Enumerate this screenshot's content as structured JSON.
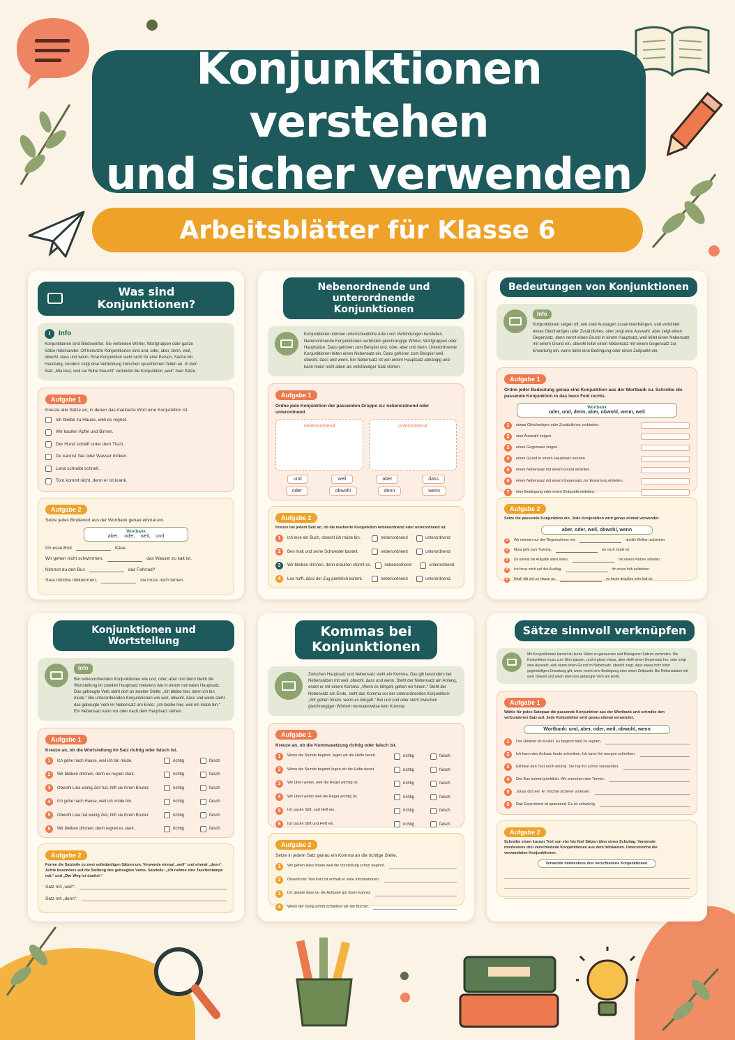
{
  "header": {
    "title_line1": "Konjunktionen verstehen",
    "title_line2": "und sicher verwenden",
    "subtitle": "Arbeitsblätter für Klasse 6"
  },
  "colors": {
    "teal": "#1e5a5c",
    "orange": "#ec7a4e",
    "yellow": "#eea22a",
    "green": "#8ea36f",
    "background": "#fbf3e6"
  },
  "card1": {
    "title": "Was sind Konjunktionen?",
    "info_label": "Info",
    "info_text": "Konjunktionen sind Bindewörter. Sie verbinden Wörter, Wortgruppen oder ganze Sätze miteinander. Oft benutzte Konjunktionen sind und, oder, aber, denn, weil, obwohl, dass und wenn. Eine Konjunktion steht nicht für eine Person, Sache bin Handlung, sondern zeigt eine Verbindung zwischen sprachlichen Teilen an. In dem Satz „Mia liest, weil sie Ruhe braucht“ verbindet die Konjunktion „weil“ zwei Sätze.",
    "task1_label": "Aufgabe 1",
    "task1_intro": "Kreuze alle Sätze an, in denen das markierte Wort eine Konjunktion ist.",
    "task1_items": [
      "Ich bleibe zu Hause, weil es regnet.",
      "Wir kaufen Äpfel und Birnen.",
      "Der Hund schläft unter dem Tisch.",
      "Du kannst Tee oder Wasser trinken.",
      "Lena schreibt schnell.",
      "Tom kommt nicht, denn er ist krank."
    ],
    "task2_label": "Aufgabe 2",
    "task2_intro": "Setze jedes Bindewort aus der Wortbank genau einmal ein.",
    "wordbank_title": "Wortbank",
    "wordbank": [
      "aber,",
      "oder,",
      "weil,",
      "und"
    ],
    "task2_items": [
      [
        "Ich esse Brot",
        "Käse."
      ],
      [
        "Wir gehen nicht schwimmen,",
        "das Wasser zu kalt ist."
      ],
      [
        "Nimmst du den Bus",
        "das Fahrrad?"
      ],
      [
        "Sara möchte mitkommen,",
        "sie muss noch lernen."
      ]
    ]
  },
  "card2": {
    "title_line1": "Nebenordnende und",
    "title_line2": "unterordnende Konjunktionen",
    "info_text": "Konjunktionen können unterschiedliche Arten von Verbindungen herstellen. Nebenordnende Konjunktionen verbinden gleichrangige Wörter, Wortgruppen oder Hauptsätze. Dazu gehören zum Beispiel und, oder, aber und denn. Unterordnende Konjunktionen leiten einen Nebensatz ein. Dazu gehören zum Beispiel weil, obwohl, dass und wenn. Ein Nebensatz ist von einem Hauptsatz abhängig und kann meist nicht allein als vollständiger Satz stehen.",
    "task1_label": "Aufgabe 1",
    "task1_intro": "Ordne jede Konjunktion der passenden Gruppe zu: nebenordnend oder unterordnend.",
    "col1": "nebenordnend",
    "col2": "unterordnend",
    "chips_row1": [
      "und",
      "weil",
      "aber",
      "dass"
    ],
    "chips_row2": [
      "oder",
      "obwohl",
      "denn",
      "wenn"
    ],
    "task2_label": "Aufgabe 2",
    "task2_intro": "Kreuze bei jedem Satz an, ob die markierte Konjunktion nebenordnend oder unterordnend ist.",
    "opt1": "nebenordnend",
    "opt2": "unterordnend",
    "task2_items": [
      "Ich lese ein Buch, obwohl ich müde bin.",
      "Ben malt und seine Schwester bastelt.",
      "Wir bleiben drinnen, denn draußen stürmt es.",
      "Lea hofft, dass der Zug pünktlich kommt."
    ],
    "task2_nums": [
      "1",
      "2",
      "3",
      "4"
    ]
  },
  "card3": {
    "title": "Bedeutungen von Konjunktionen",
    "info_label": "Info",
    "info_text": "Konjunktionen zeigen oft, wie zwei Aussagen zusammenhängen. und verbindet etwas Gleichartiges oder Zusätzliches. oder zeigt eine Auswahl. aber zeigt einen Gegensatz. denn nennt einen Grund in einem Hauptsatz, weil leitet einen Nebensatz mit einem Grund ein. obwohl leitet einen Nebensatz mit einem Gegensatz zur Erwartung ein. wenn leitet eine Bedingung oder einen Zeitpunkt ein.",
    "task1_label": "Aufgabe 1",
    "task1_intro": "Ordne jeder Bedeutung genau eine Konjunktion aus der Wortbank zu. Schreibe die passende Konjunktion in das leere Feld rechts.",
    "wordbank_title": "Wortbank",
    "wordbank": "oder,   und,   denn,   aber,   obwohl,   wenn,   weil",
    "task1_items": [
      "etwas Gleichartiges oder Zusätzliches verbinden.",
      "eine Auswahl zeigen.",
      "einen Gegensatz zeigen.",
      "einen Grund in einem Hauptsatz nennen.",
      "einen Nebensatz mit einem Grund einleiten.",
      "einen Nebensatz mit einem Gegensatz zur Erwartung einleiten.",
      "eine Bedingung oder einen Zeitpunkt einleiten."
    ],
    "task1_nums": [
      "1",
      "2",
      "3",
      "4",
      "5",
      "6",
      "7"
    ],
    "task2_label": "Aufgabe 2",
    "task2_intro": "Setze die passende Konjunktion ein. Jede Konjunktion wird genau einmal verwendet.",
    "wordbank2": "aber,   oder,   weil,   obwohl,   wenn",
    "task2_items": [
      [
        "Wir nehmen nur den Regenschirme mit,",
        "dunkle Wolken aufziehen."
      ],
      [
        "Mara geht zum Training,",
        "sie noch müde ist."
      ],
      [
        "Du kannst die Aufgabe allein lösen,",
        "mit einem Partner arbeiten."
      ],
      [
        "Ich freue mich auf den Ausflug,",
        "ich muss früh aufstehen."
      ],
      [
        "Noah übt viel zu Hause an,",
        "es heute draußen sehr kalt ist."
      ]
    ],
    "task2_nums": [
      "1",
      "2",
      "3",
      "4",
      "5"
    ]
  },
  "card4": {
    "title": "Konjunktionen und Wortstellung",
    "info_label": "Info",
    "info_text": "Bei nebenordnenden Konjunktionen wie und, oder, aber und denn bleibt die Wortstellung im zweiten Hauptsatz meistens wie in einem normalen Hauptsatz. Das gebeugte Verb steht dort an zweiter Stelle: „Ich bleibe hier, denn ich bin müde.“ Bei unterordnenden Konjunktionen wie weil, obwohl, dass und wenn steht das gebeugte Verb im Nebensatz am Ende: „Ich bleibe hier, weil ich müde bin.“ Ein Nebensatz kann vor oder nach dem Hauptsatz stehen.",
    "task1_label": "Aufgabe 1",
    "task1_intro": "Kreuze an, ob die Wortstellung im Satz richtig oder falsch ist.",
    "opt1": "richtig",
    "opt2": "falsch",
    "task1_items": [
      "Ich gehe nach Hause, weil ich bin müde.",
      "Wir bleiben drinnen, denn es regnet stark.",
      "Obwohl Lina wenig Zeit hat, hilft sie ihrem Bruder.",
      "Ich gehe nach Hause, weil ich müde bin.",
      "Obwohl Lina hat wenig Zeit, hilft sie ihrem Bruder.",
      "Wir bleiben drinnen, denn regnet es stark."
    ],
    "task1_nums": [
      "1",
      "2",
      "3",
      "4",
      "5",
      "6"
    ],
    "task2_label": "Aufgabe 2",
    "task2_intro": "Forme die Satzteile zu zwei vollständigen Sätzen um. Verwende einmal „weil“ und einmal „denn“. Achte besonders auf die Stellung des gebeugten Verbs. Satzteile: „Ich nehme eine Taschenlampe mit.“ und „Der Weg ist dunkel.“",
    "task2_items": [
      "Satz mit „weil“:",
      "Satz mit „denn“:"
    ]
  },
  "card5": {
    "title_line1": "Kommas bei",
    "title_line2": "Konjunktionen",
    "info_text": "Zwischen Hauptsatz und Nebensatz steht ein Komma. Das gilt besonders bei Nebensätzen mit weil, obwohl, dass und wenn. Steht der Nebensatz am Anfang, endet er mit einem Komma: „Wenn es klingelt, gehen wir hinein.“ Steht der Nebensatz am Ende, steht das Komma vor der unterordnenden Konjunktion: „Wir gehen hinein, wenn es klingelt.“ Bei und und oder steht zwischen gleichrangigen Wörtern normalerweise kein Komma.",
    "task1_label": "Aufgabe 1",
    "task1_intro": "Kreuze an, ob die Kommasetzung richtig oder falsch ist.",
    "opt1": "richtig",
    "opt2": "falsch",
    "task1_items": [
      "Wenn die Stunde beginnt, legen wir die Hefte bereit.",
      "Wenn die Stunde beginnt legen wir die Hefte bereit.",
      "Wir üben weiter, weil die Regel wichtig ist.",
      "Wir üben weiter weil die Regel wichtig ist.",
      "Ich packe Stift, und Heft ein.",
      "Ich packe Stift und Heft ein."
    ],
    "task1_nums": [
      "1",
      "2",
      "3",
      "4",
      "5",
      "6"
    ],
    "task2_label": "Aufgabe 2",
    "task2_intro": "Setze in jedem Satz genau ein Komma an die richtige Stelle.",
    "task2_items": [
      "Wir gehen leise hinein weil die Vorstellung schon beginnt.",
      "Obwohl der Text kurz ist enthält er viele Informationen.",
      "Ich glaube dass du die Aufgabe gut lösen kannst.",
      "Wenn der Gong ertönt schließen wir die Bücher."
    ],
    "task2_nums": [
      "1",
      "2",
      "3",
      "4"
    ]
  },
  "card6": {
    "title": "Sätze sinnvoll verknüpfen",
    "info_text": "Mit Konjunktionen kannst du kurze Sätze zu genaueren und flüssigeren Sätzen verbinden. Die Konjunktion muss zum Sinn passen. und ergänzt etwas, aber stellt einen Gegensatz her, oder zeigt eine Auswahl, weil nennt einen Grund im Nebensatz, obwohl zeigt, dass etwas trotz einer gegenteiligen Erwartung gilt, wenn nennt eine Bedingung oder einen Zeitpunkt. Bei Nebensätzen mit weil, obwohl und wenn steht das gebeugte Verb am Ende.",
    "task1_label": "Aufgabe 1",
    "task1_intro": "Wähle für jedes Satzpaar die passende Konjunktion aus der Wortbank und schreibe den verbundenen Satz auf. Jede Konjunktion wird genau einmal verwendet.",
    "wordbank": "Wortbank:  und,  aber,  oder,  weil,  obwohl,  wenn",
    "task1_items": [
      "Der Himmel ist dunkel. Es beginnt bald zu regnen.",
      "Ich kann den Aufsatz heute schreiben. Ich kann ihn morgen schreiben.",
      "Elif liest den Text noch einmal. Sie hat ihn schon verstanden.",
      "Der Bus kommt pünktlich. Wir erreichen den Termin.",
      "Jonas übt viel. Er möchte sicherer vorlesen.",
      "Das Experiment ist spannend. Es ist schwierig."
    ],
    "task1_nums": [
      "1",
      "2",
      "3",
      "4",
      "5",
      "6"
    ],
    "task2_label": "Aufgabe 2",
    "task2_intro": "Schreibe einen kurzen Text von vier bis fünf Sätzen über einen Schultag. Verwende mindestens drei verschiedene Konjunktionen aus dem Infokasten. Unterstreiche die verwendeten Konjunktionen.",
    "task2_note": "Verwende mindestens drei verschiedene Konjunktionen."
  }
}
